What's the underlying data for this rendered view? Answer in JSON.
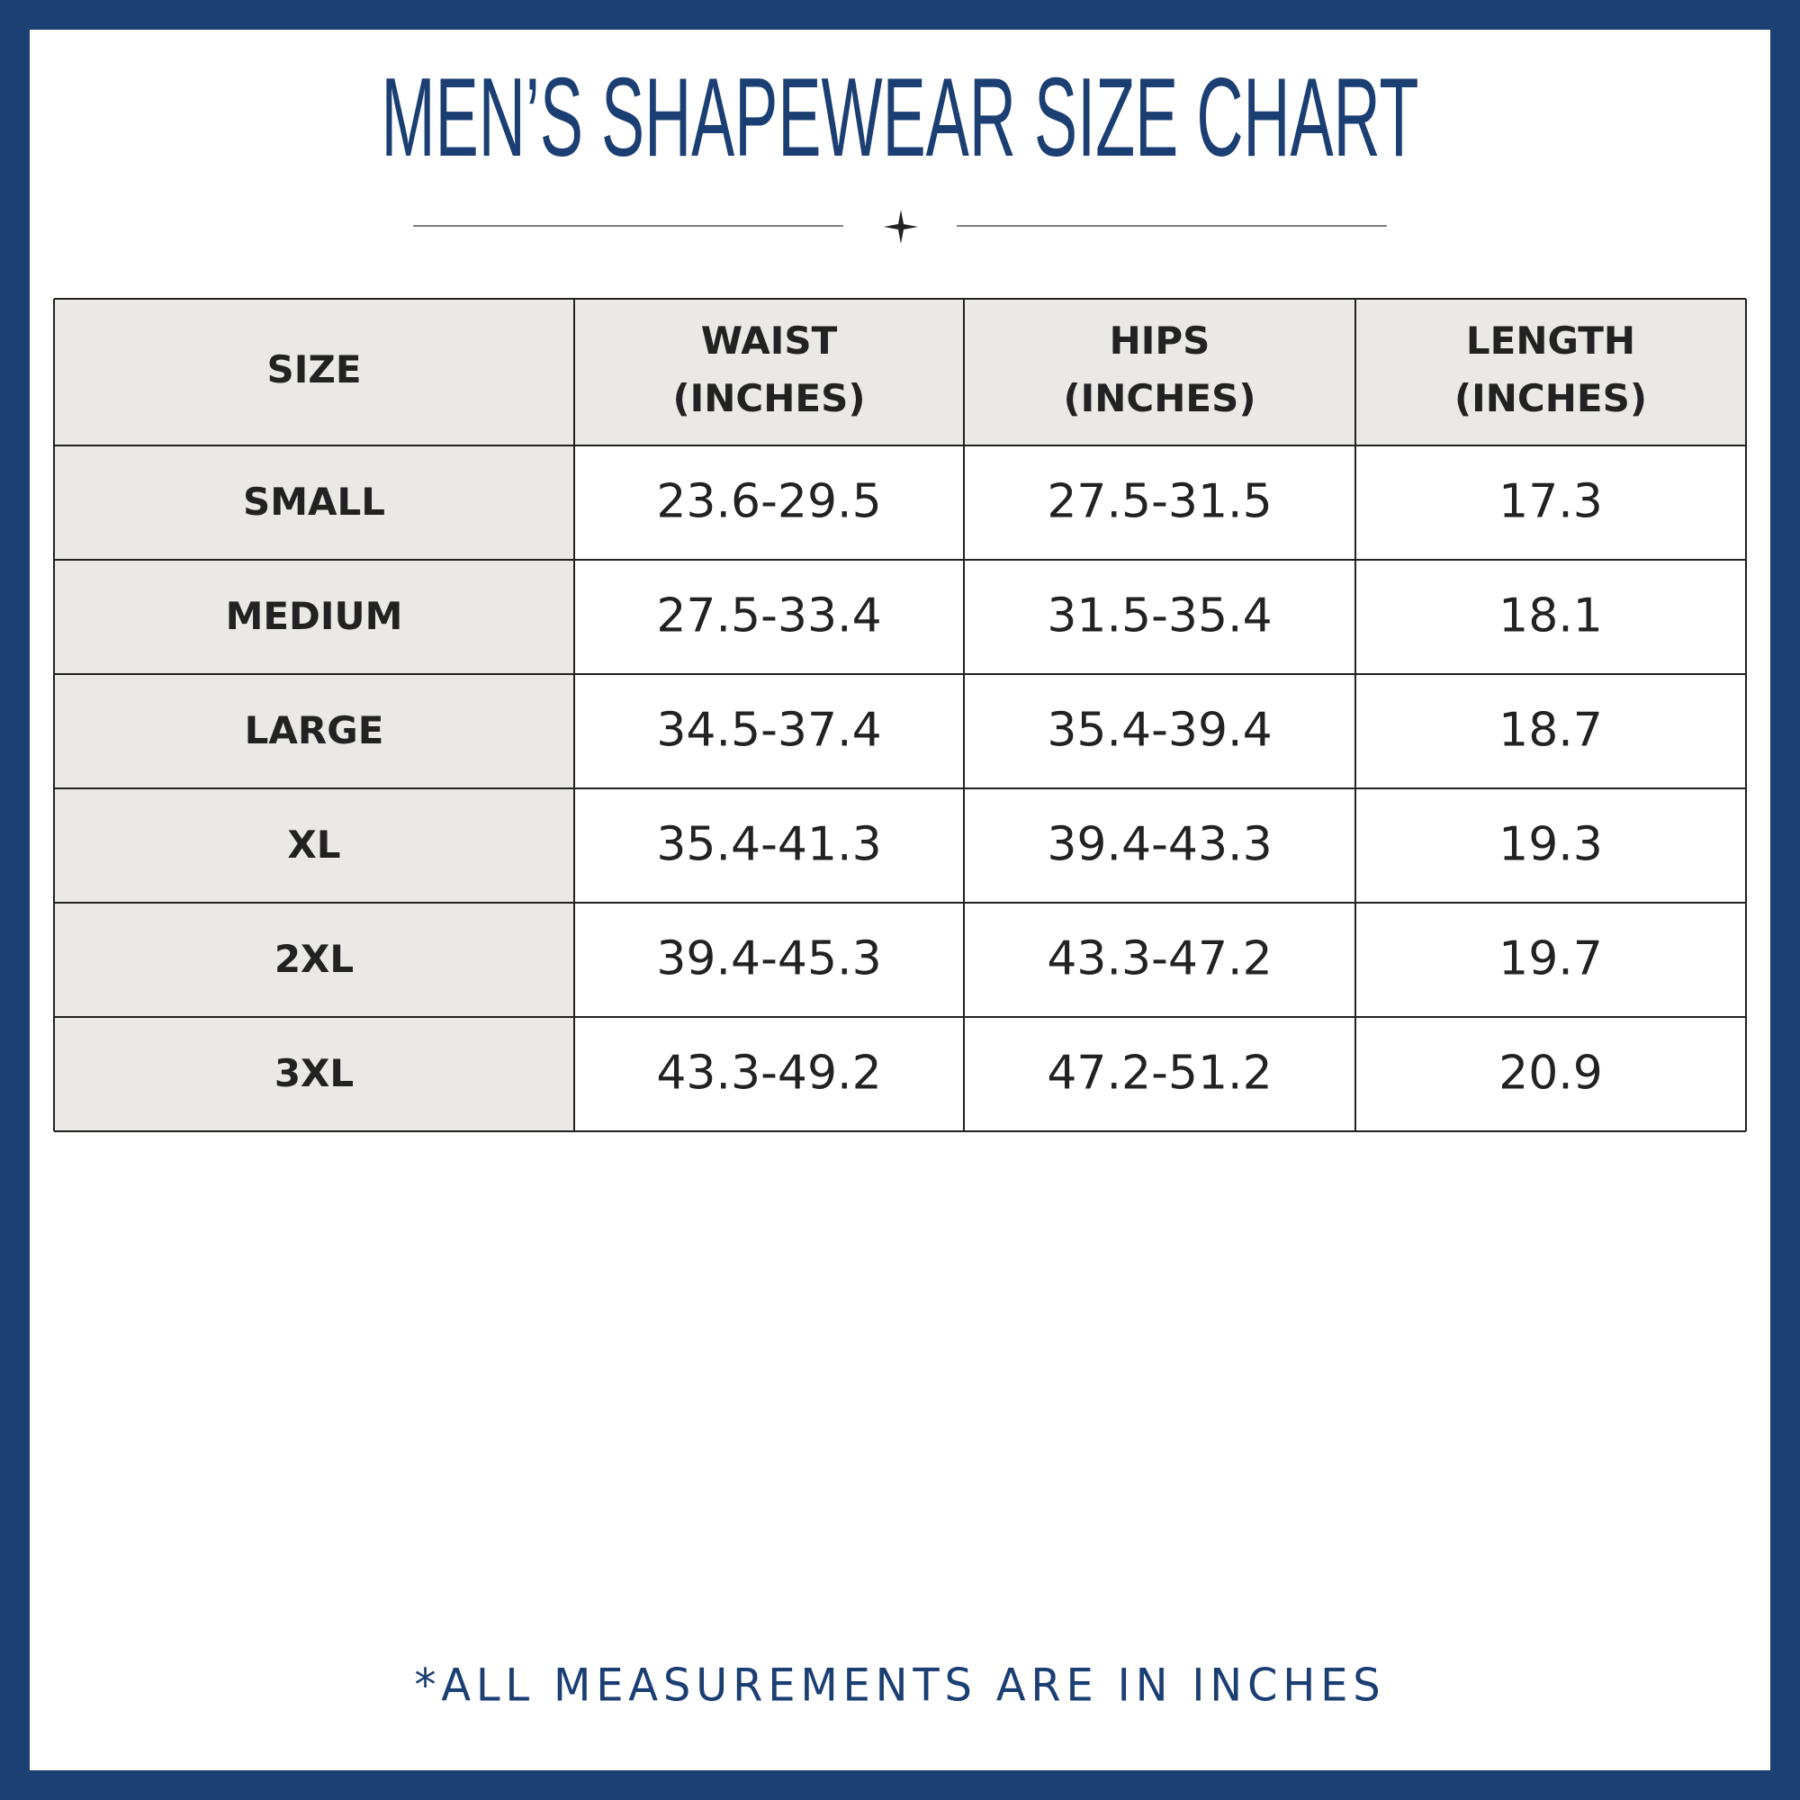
{
  "header": {
    "title": "MEN’S SHAPEWEAR SIZE CHART"
  },
  "table": {
    "columns": [
      [
        "SIZE"
      ],
      [
        "WAIST",
        "(INCHES)"
      ],
      [
        "HIPS",
        "(INCHES)"
      ],
      [
        "LENGTH",
        "(INCHES)"
      ]
    ],
    "rows": [
      [
        "SMALL",
        "23.6-29.5",
        "27.5-31.5",
        "17.3"
      ],
      [
        "MEDIUM",
        "27.5-33.4",
        "31.5-35.4",
        "18.1"
      ],
      [
        "LARGE",
        "34.5-37.4",
        "35.4-39.4",
        "18.7"
      ],
      [
        "XL",
        "35.4-41.3",
        "39.4-43.3",
        "19.3"
      ],
      [
        "2XL",
        "39.4-45.3",
        "43.3-47.2",
        "19.7"
      ],
      [
        "3XL",
        "43.3-49.2",
        "47.2-51.2",
        "20.9"
      ]
    ]
  },
  "footer": {
    "note": "*ALL MEASUREMENTS ARE IN INCHES"
  }
}
